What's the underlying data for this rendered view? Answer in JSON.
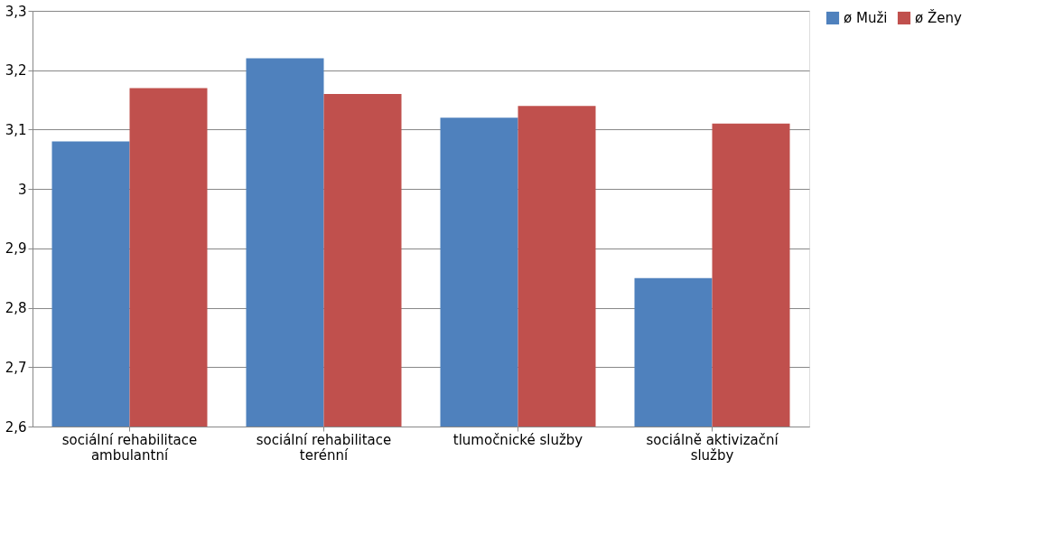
{
  "chart_data": {
    "type": "bar",
    "categories": [
      "sociální rehabilitace ambulantní",
      "sociální rehabilitace terénní",
      "tlumočnické služby",
      "sociálně aktivizační služby"
    ],
    "series": [
      {
        "name": "ø Muži",
        "color": "#4f81bd",
        "values": [
          3.08,
          3.22,
          3.12,
          2.85
        ]
      },
      {
        "name": "ø Ženy",
        "color": "#c0504d",
        "values": [
          3.17,
          3.16,
          3.14,
          3.11
        ]
      }
    ],
    "ylim": [
      2.6,
      3.3
    ],
    "yticks": [
      {
        "value": 2.6,
        "label": "2,6"
      },
      {
        "value": 2.7,
        "label": "2,7"
      },
      {
        "value": 2.8,
        "label": "2,8"
      },
      {
        "value": 2.9,
        "label": "2,9"
      },
      {
        "value": 3,
        "label": "3"
      },
      {
        "value": 3.1,
        "label": "3,1"
      },
      {
        "value": 3.2,
        "label": "3,2"
      },
      {
        "value": 3.3,
        "label": "3,3"
      }
    ],
    "grid": "y",
    "legend": "right"
  }
}
